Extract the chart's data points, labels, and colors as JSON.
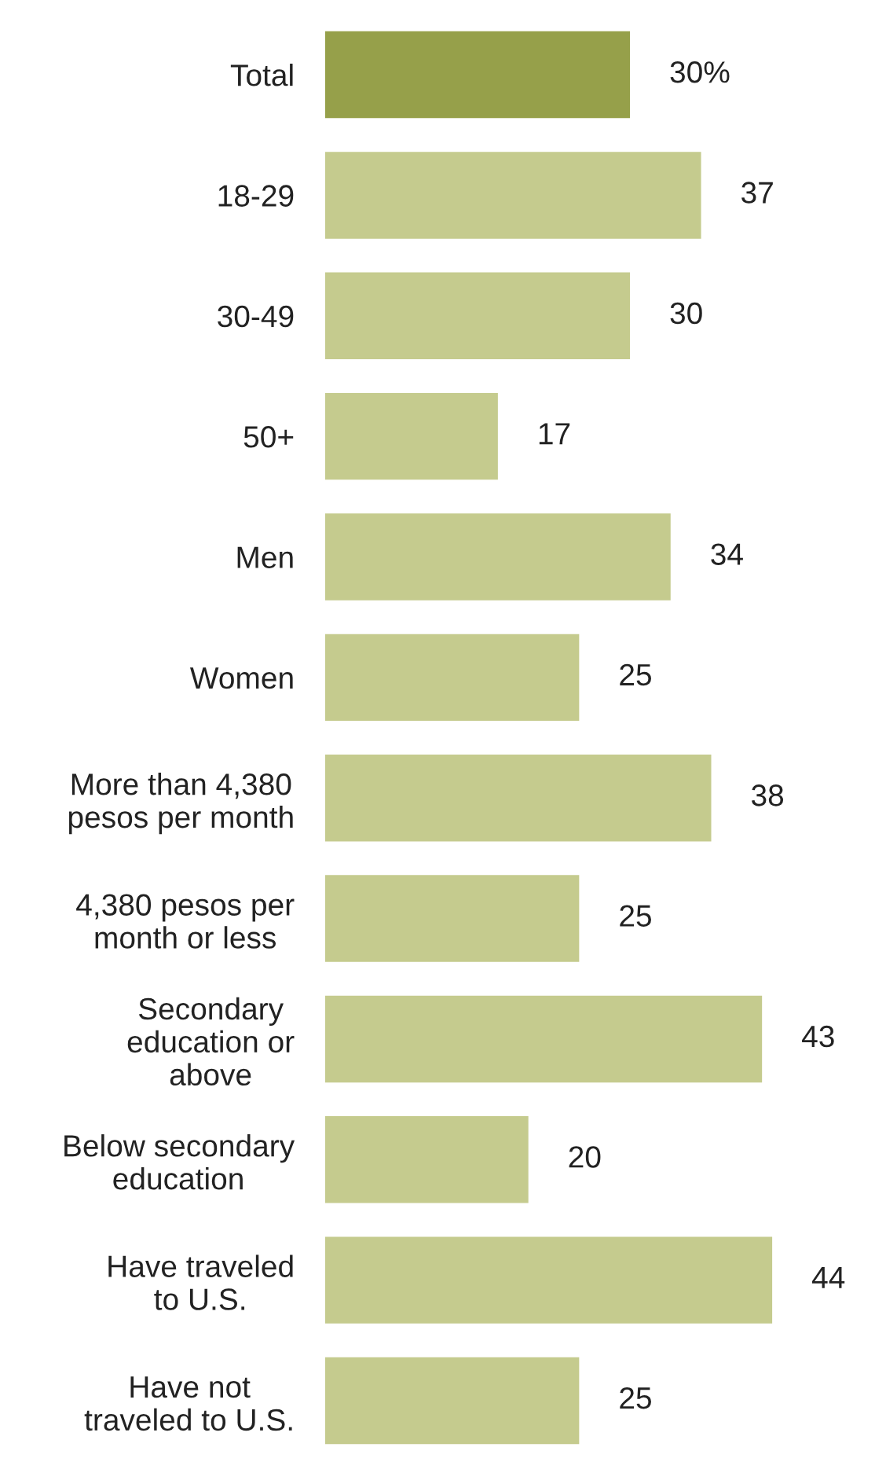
{
  "chart_data": {
    "type": "bar",
    "orientation": "horizontal",
    "categories": [
      "Total",
      "18-29",
      "30-49",
      "50+",
      "Men",
      "Women",
      "More than 4,380\npesos per month",
      "4,380 pesos per\nmonth or less",
      "Secondary\neducation or\nabove",
      "Below secondary\neducation",
      "Have traveled\nto U.S.",
      "Have not\ntraveled to U.S."
    ],
    "values": [
      30,
      37,
      30,
      17,
      34,
      25,
      38,
      25,
      43,
      20,
      44,
      25
    ],
    "colors": [
      "#96a04a",
      "#c5cb8e",
      "#c5cb8e",
      "#c5cb8e",
      "#c5cb8e",
      "#c5cb8e",
      "#c5cb8e",
      "#c5cb8e",
      "#c5cb8e",
      "#c5cb8e",
      "#c5cb8e",
      "#c5cb8e"
    ],
    "value_labels": [
      "30%",
      "37",
      "30",
      "17",
      "34",
      "25",
      "38",
      "25",
      "43",
      "20",
      "44",
      "25"
    ]
  }
}
